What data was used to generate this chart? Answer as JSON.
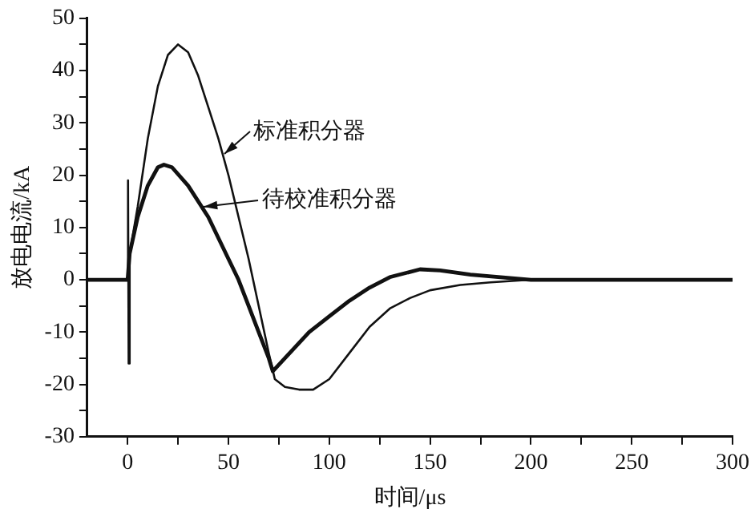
{
  "chart_data": {
    "type": "line",
    "xlabel": "时间/μs",
    "ylabel": "放电电流/kA",
    "xlim": [
      -20,
      300
    ],
    "xticks": [
      0,
      {
        "value": 25,
        "label": null
      },
      50,
      {
        "value": 75,
        "label": null
      },
      100,
      {
        "value": 125,
        "label": null
      },
      150,
      {
        "value": 175,
        "label": null
      },
      200,
      {
        "value": 225,
        "label": null
      },
      250,
      {
        "value": 275,
        "label": null
      },
      300
    ],
    "ylim": [
      -30,
      50
    ],
    "yticks": [
      -30,
      {
        "value": -25,
        "label": null
      },
      -20,
      {
        "value": -15,
        "label": null
      },
      -10,
      {
        "value": -5,
        "label": null
      },
      0,
      {
        "value": 5,
        "label": null
      },
      10,
      {
        "value": 15,
        "label": null
      },
      20,
      {
        "value": 25,
        "label": null
      },
      30,
      {
        "value": 35,
        "label": null
      },
      40,
      {
        "value": 45,
        "label": null
      },
      50
    ],
    "grid": false,
    "legend": false,
    "marker": "none",
    "line_style": "solid",
    "series": [
      {
        "color": "#111111",
        "x": [
          -20,
          -10,
          0,
          0.2,
          0.5,
          1,
          5,
          10,
          15,
          20,
          25,
          30,
          35,
          40,
          45,
          50,
          55,
          60,
          65,
          70,
          73,
          78,
          85,
          92,
          100,
          110,
          120,
          130,
          140,
          150,
          165,
          180,
          200,
          250,
          300
        ],
        "values": [
          0,
          0,
          0,
          19,
          -16,
          5,
          14,
          27,
          37,
          43,
          45,
          43.5,
          39,
          33,
          27,
          20,
          12,
          4,
          -5,
          -14,
          -19,
          -20.5,
          -21,
          -21,
          -19,
          -14,
          -9,
          -5.5,
          -3.5,
          -2,
          -1,
          -0.5,
          0,
          0,
          0
        ]
      },
      {
        "color": "#111111",
        "x": [
          -20,
          0,
          1,
          5,
          10,
          15,
          18,
          22,
          30,
          40,
          50,
          55,
          60,
          65,
          70,
          72,
          78,
          90,
          100,
          110,
          120,
          130,
          145,
          155,
          170,
          185,
          200,
          250,
          300
        ],
        "values": [
          0,
          0,
          5,
          12,
          18,
          21.5,
          22,
          21.5,
          18,
          12,
          4,
          0,
          -5,
          -10,
          -15,
          -17.5,
          -15,
          -10,
          -7,
          -4,
          -1.5,
          0.5,
          2,
          1.8,
          1,
          0.5,
          0,
          0,
          0
        ]
      }
    ],
    "annotations": [
      {
        "text": "标准积分器",
        "x": 48,
        "y": 24
      },
      {
        "text": "待校准积分器",
        "x": 38,
        "y": 14
      }
    ]
  }
}
